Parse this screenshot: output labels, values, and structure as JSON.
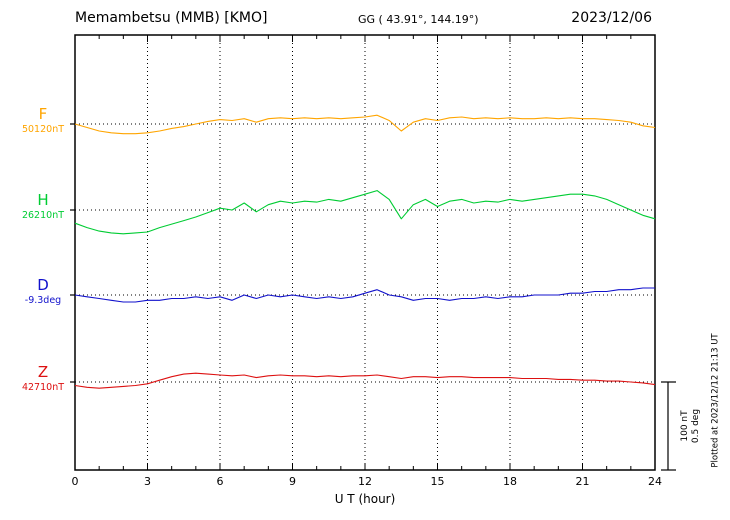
{
  "header": {
    "station": "Memambetsu (MMB)  [KMO]",
    "gg": "GG ( 43.91°, 144.19°)",
    "date": "2023/12/06"
  },
  "axis": {
    "xlabel": "U T (hour)"
  },
  "scale_annotation": {
    "line1": "100 nT",
    "line2": "0.5 deg"
  },
  "footer_rotated": "Plotted at 2023/12/12 21:13 UT",
  "colors": {
    "F": "#FFA500",
    "H": "#00CC33",
    "D": "#1111CC",
    "Z": "#DD1111",
    "frame": "#000000"
  },
  "chart_data": {
    "type": "line",
    "title": "Memambetsu (MMB) [KMO] magnetogram 2023/12/06",
    "xlabel": "U T (hour)",
    "x_range": [
      0,
      24
    ],
    "x_ticks": [
      0,
      3,
      6,
      9,
      12,
      15,
      18,
      21,
      24
    ],
    "x_step_hours": 0.5,
    "grid": "dotted vertical at 3h intervals, dotted horizontal baselines",
    "scale": {
      "nT_per_div": 100,
      "deg_per_div": 0.5
    },
    "series": [
      {
        "name": "F",
        "unit": "nT",
        "baseline_value": 50120,
        "baseline_label": "50120nT",
        "color": "#FFA500",
        "offsets": [
          0,
          -4,
          -8,
          -10,
          -11,
          -11,
          -10,
          -8,
          -5,
          -3,
          0,
          3,
          5,
          4,
          6,
          2,
          6,
          7,
          6,
          7,
          6,
          7,
          6,
          7,
          8,
          10,
          4,
          -8,
          2,
          6,
          4,
          7,
          8,
          6,
          7,
          6,
          7,
          6,
          6,
          7,
          6,
          7,
          6,
          6,
          5,
          4,
          2,
          -2,
          -4
        ]
      },
      {
        "name": "H",
        "unit": "nT",
        "baseline_value": 26210,
        "baseline_label": "26210nT",
        "color": "#00CC33",
        "offsets": [
          -15,
          -20,
          -24,
          -26,
          -27,
          -26,
          -25,
          -20,
          -16,
          -12,
          -8,
          -3,
          2,
          0,
          8,
          -2,
          6,
          10,
          8,
          10,
          9,
          12,
          10,
          14,
          18,
          22,
          12,
          -10,
          6,
          12,
          4,
          10,
          12,
          8,
          10,
          9,
          12,
          10,
          12,
          14,
          16,
          18,
          18,
          16,
          12,
          6,
          0,
          -6,
          -10
        ]
      },
      {
        "name": "D",
        "unit": "deg",
        "baseline_value": -9.3,
        "baseline_label": "-9.3deg",
        "color": "#1111CC",
        "offsets": [
          0,
          -0.01,
          -0.02,
          -0.03,
          -0.04,
          -0.04,
          -0.03,
          -0.03,
          -0.02,
          -0.02,
          -0.01,
          -0.02,
          -0.01,
          -0.03,
          0,
          -0.02,
          0,
          -0.01,
          0,
          -0.01,
          -0.02,
          -0.01,
          -0.02,
          -0.01,
          0.01,
          0.03,
          0,
          -0.01,
          -0.03,
          -0.02,
          -0.02,
          -0.03,
          -0.02,
          -0.02,
          -0.01,
          -0.02,
          -0.01,
          -0.01,
          0,
          0,
          0,
          0.01,
          0.01,
          0.02,
          0.02,
          0.03,
          0.03,
          0.04,
          0.04
        ]
      },
      {
        "name": "Z",
        "unit": "nT",
        "baseline_value": 42710,
        "baseline_label": "42710nT",
        "color": "#DD1111",
        "offsets": [
          -4,
          -6,
          -7,
          -6,
          -5,
          -4,
          -2,
          2,
          6,
          9,
          10,
          9,
          8,
          7,
          8,
          5,
          7,
          8,
          7,
          7,
          6,
          7,
          6,
          7,
          7,
          8,
          6,
          4,
          6,
          6,
          5,
          6,
          6,
          5,
          5,
          5,
          5,
          4,
          4,
          4,
          3,
          3,
          2,
          2,
          1,
          1,
          0,
          -1,
          -3
        ]
      }
    ]
  }
}
